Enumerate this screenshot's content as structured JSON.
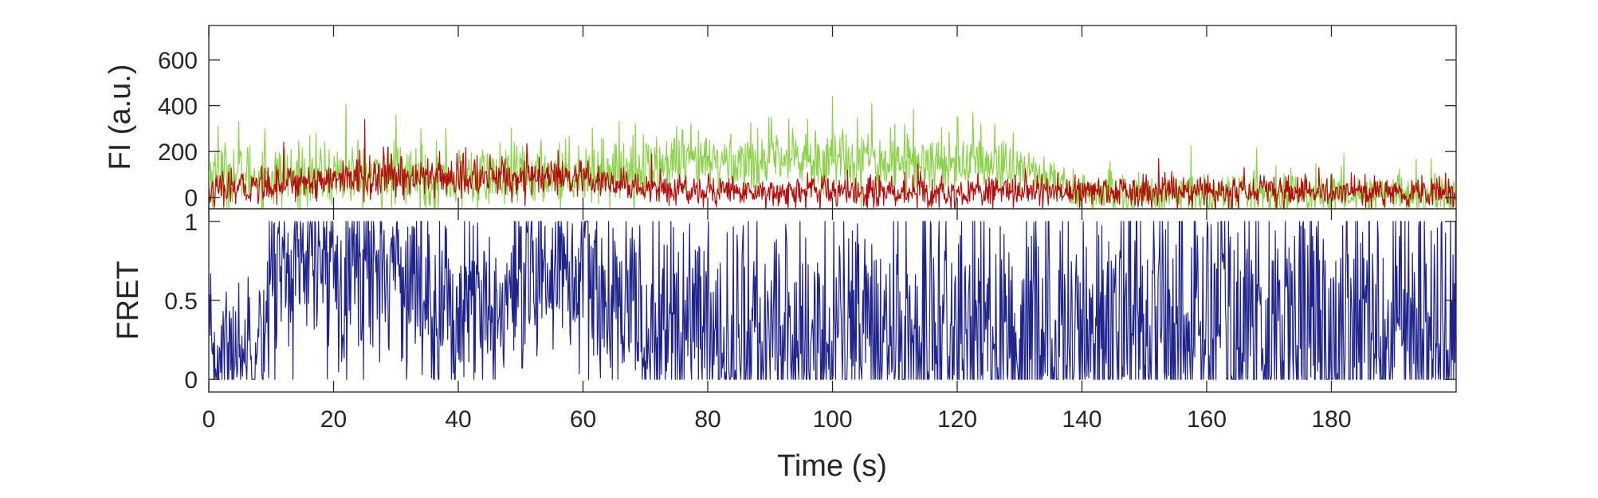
{
  "chart_data": [
    {
      "type": "line",
      "panel": "top",
      "ylabel": "FI (a.u.)",
      "xlabel": "",
      "xlim": [
        0,
        200
      ],
      "ylim": [
        -50,
        750
      ],
      "yticks": [
        0,
        200,
        400,
        600
      ],
      "ytick_labels": [
        "0",
        "200",
        "400",
        "600"
      ],
      "xticks": [
        0,
        20,
        40,
        60,
        80,
        100,
        120,
        140,
        160,
        180
      ],
      "grid": false,
      "sample_interval_s": 0.1,
      "series": [
        {
          "color": "#8cd24b",
          "x": [
            0,
            10,
            20,
            30,
            40,
            50,
            60,
            70,
            80,
            90,
            100,
            110,
            120,
            130,
            140,
            150,
            160,
            170,
            180,
            190,
            200
          ],
          "values": [
            100,
            95,
            100,
            90,
            80,
            95,
            110,
            130,
            150,
            160,
            170,
            160,
            155,
            135,
            20,
            10,
            15,
            20,
            15,
            15,
            10
          ],
          "noise_std": [
            70,
            70,
            70,
            70,
            70,
            70,
            70,
            70,
            70,
            70,
            75,
            70,
            70,
            60,
            45,
            45,
            45,
            45,
            45,
            45,
            45
          ],
          "peaks": [
            [
              1.5,
              310
            ],
            [
              4.8,
              330
            ],
            [
              9,
              300
            ],
            [
              22,
              405
            ],
            [
              30,
              360
            ],
            [
              34,
              300
            ],
            [
              38,
              300
            ],
            [
              68,
              270
            ],
            [
              75,
              310
            ],
            [
              88,
              300
            ],
            [
              96,
              340
            ],
            [
              100,
              440
            ],
            [
              104,
              345
            ],
            [
              106.3,
              410
            ],
            [
              110,
              320
            ],
            [
              113,
              385
            ],
            [
              120,
              350
            ],
            [
              122.5,
              370
            ],
            [
              126,
              320
            ],
            [
              129,
              280
            ],
            [
              157.5,
              225
            ],
            [
              168,
              215
            ],
            [
              182,
              190
            ],
            [
              196,
              170
            ]
          ]
        },
        {
          "color": "#b40e0e",
          "x": [
            0,
            10,
            20,
            30,
            40,
            50,
            60,
            70,
            80,
            90,
            100,
            110,
            120,
            130,
            140,
            150,
            160,
            170,
            180,
            190,
            200
          ],
          "values": [
            20,
            60,
            80,
            90,
            85,
            90,
            70,
            40,
            30,
            25,
            25,
            25,
            20,
            25,
            25,
            25,
            25,
            25,
            25,
            25,
            20
          ],
          "noise_std": [
            35,
            40,
            45,
            45,
            45,
            45,
            40,
            35,
            35,
            35,
            35,
            35,
            35,
            35,
            35,
            35,
            35,
            35,
            35,
            35,
            35
          ],
          "peaks": [
            [
              12,
              240
            ],
            [
              25,
              340
            ],
            [
              28,
              220
            ],
            [
              37,
              200
            ],
            [
              51,
              235
            ],
            [
              56,
              205
            ],
            [
              71,
              190
            ],
            [
              152.3,
              170
            ],
            [
              166,
              130
            ],
            [
              178,
              130
            ]
          ]
        }
      ]
    },
    {
      "type": "line",
      "panel": "bottom",
      "ylabel": "FRET",
      "xlabel": "Time (s)",
      "xlim": [
        0,
        200
      ],
      "ylim": [
        -0.08,
        1.08
      ],
      "yticks": [
        0,
        0.5,
        1
      ],
      "ytick_labels": [
        "0",
        "0.5",
        "1"
      ],
      "xticks": [
        0,
        20,
        40,
        60,
        80,
        100,
        120,
        140,
        160,
        180
      ],
      "xtick_labels": [
        "0",
        "20",
        "40",
        "60",
        "80",
        "100",
        "120",
        "140",
        "160",
        "180"
      ],
      "grid": false,
      "clip": true,
      "sample_interval_s": 0.1,
      "series": [
        {
          "color": "#1f238c",
          "x": [
            0,
            5,
            9,
            10,
            20,
            30,
            35,
            40,
            50,
            55,
            60,
            65,
            70,
            75,
            80,
            90,
            100,
            110,
            120,
            130,
            140,
            150,
            160,
            170,
            180,
            190,
            200
          ],
          "values": [
            0.15,
            0.2,
            0.3,
            0.7,
            0.72,
            0.72,
            0.55,
            0.4,
            0.45,
            0.75,
            0.65,
            0.45,
            0.35,
            0.35,
            0.25,
            0.25,
            0.25,
            0.25,
            0.25,
            0.28,
            0.3,
            0.35,
            0.35,
            0.35,
            0.35,
            0.35,
            0.35
          ],
          "noise_std": [
            0.22,
            0.22,
            0.25,
            0.3,
            0.3,
            0.3,
            0.32,
            0.32,
            0.32,
            0.3,
            0.32,
            0.35,
            0.35,
            0.38,
            0.4,
            0.42,
            0.42,
            0.42,
            0.42,
            0.45,
            0.48,
            0.5,
            0.5,
            0.5,
            0.5,
            0.5,
            0.5
          ]
        }
      ]
    }
  ]
}
